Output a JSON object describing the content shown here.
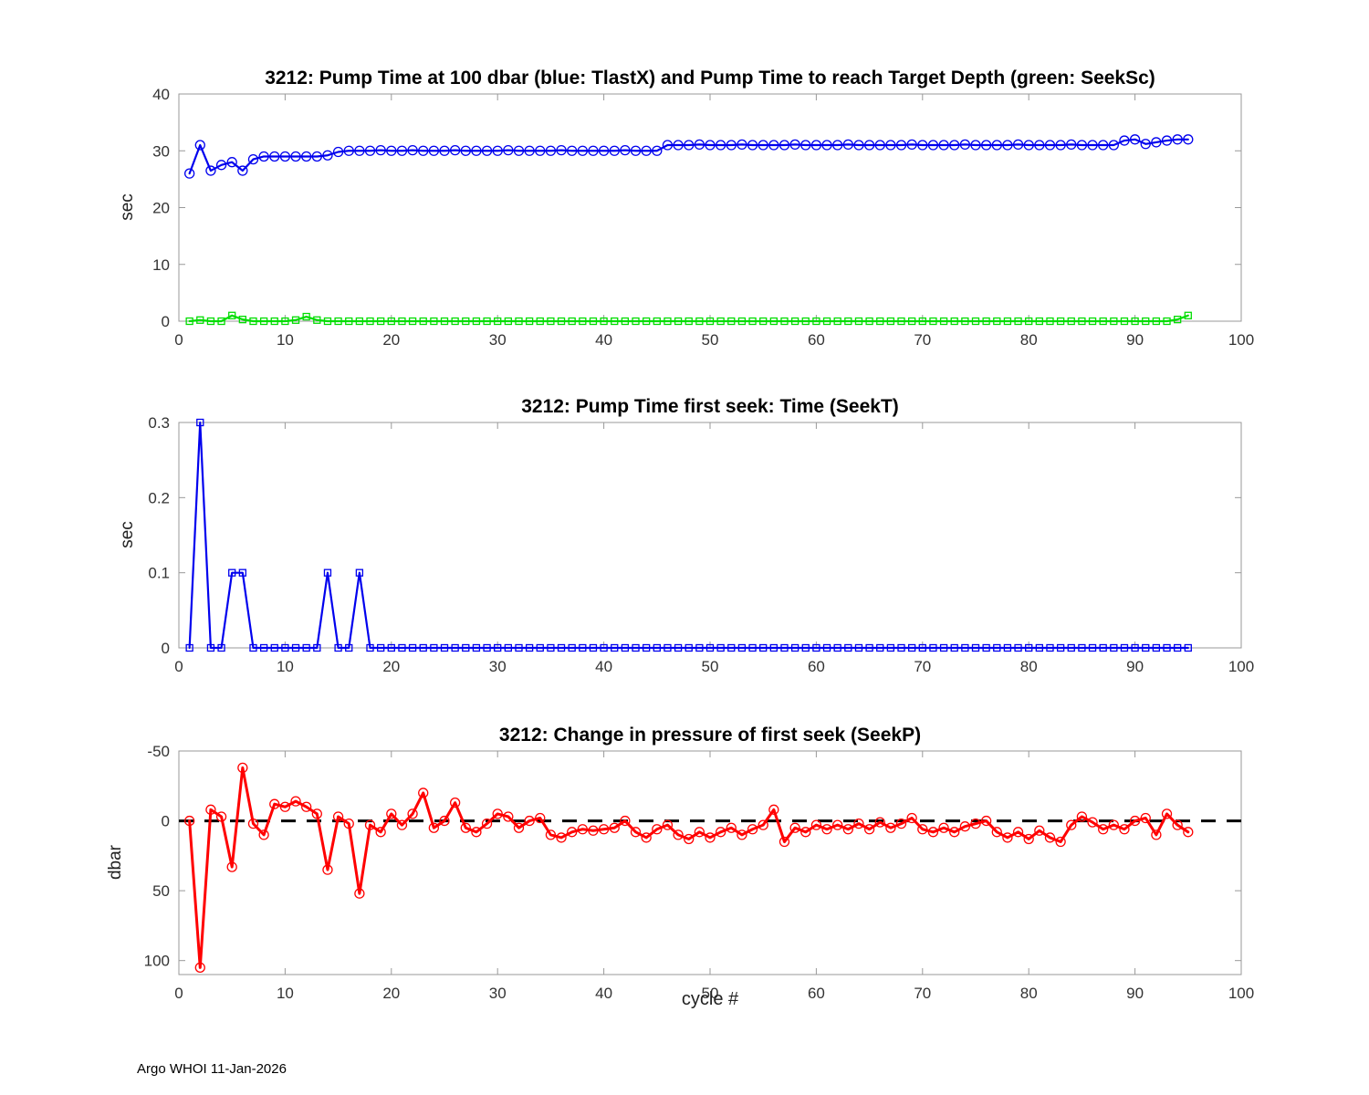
{
  "footer": "Argo WHOI 11-Jan-2026",
  "xlabel": "cycle #",
  "chart_data": [
    {
      "type": "line",
      "title": "3212:  Pump Time at 100 dbar (blue: TlastX) and Pump Time to reach Target Depth (green: SeekSc)",
      "ylabel": "sec",
      "ylim": [
        0,
        40
      ],
      "yticks": [
        0,
        10,
        20,
        30,
        40
      ],
      "xlim": [
        0,
        100
      ],
      "xticks": [
        0,
        10,
        20,
        30,
        40,
        50,
        60,
        70,
        80,
        90,
        100
      ],
      "grid": false,
      "legend": "inline in title",
      "series": [
        {
          "name": "TlastX",
          "color": "#0000ee",
          "marker": "circle",
          "x_start": 1,
          "values": [
            26,
            31,
            26.5,
            27.5,
            28,
            26.5,
            28.5,
            29,
            29,
            29,
            29,
            29,
            29,
            29.2,
            29.8,
            30,
            30,
            30,
            30.1,
            30,
            30,
            30.1,
            30,
            30,
            30,
            30.1,
            30,
            30,
            30,
            30,
            30.1,
            30,
            30,
            30,
            30,
            30.1,
            30,
            30,
            30,
            30,
            30,
            30.1,
            30,
            30,
            30,
            31,
            31,
            31,
            31.1,
            31,
            31,
            31,
            31.1,
            31,
            31,
            31,
            31,
            31.1,
            31,
            31,
            31,
            31,
            31.1,
            31,
            31,
            31,
            31,
            31,
            31.1,
            31,
            31,
            31,
            31,
            31.1,
            31,
            31,
            31,
            31,
            31.1,
            31,
            31,
            31,
            31,
            31.1,
            31,
            31,
            31,
            31,
            31.8,
            32,
            31.2,
            31.5,
            31.8,
            32,
            32
          ]
        },
        {
          "name": "SeekSc",
          "color": "#00dd00",
          "marker": "square",
          "x_start": 1,
          "values": [
            0,
            0.2,
            0,
            0,
            1,
            0.3,
            0,
            0,
            0,
            0,
            0.2,
            0.8,
            0.2,
            0,
            0,
            0,
            0,
            0,
            0,
            0,
            0,
            0,
            0,
            0,
            0,
            0,
            0,
            0,
            0,
            0,
            0,
            0,
            0,
            0,
            0,
            0,
            0,
            0,
            0,
            0,
            0,
            0,
            0,
            0,
            0,
            0,
            0,
            0,
            0,
            0,
            0,
            0,
            0,
            0,
            0,
            0,
            0,
            0,
            0,
            0,
            0,
            0,
            0,
            0,
            0,
            0,
            0,
            0,
            0,
            0,
            0,
            0,
            0,
            0,
            0,
            0,
            0,
            0,
            0,
            0,
            0,
            0,
            0,
            0,
            0,
            0,
            0,
            0,
            0,
            0,
            0,
            0,
            0,
            0.3,
            1
          ]
        }
      ]
    },
    {
      "type": "line",
      "title": "3212: Pump Time first seek: Time (SeekT)",
      "ylabel": "sec",
      "ylim": [
        0,
        0.3
      ],
      "yticks": [
        0,
        0.1,
        0.2,
        0.3
      ],
      "xlim": [
        0,
        100
      ],
      "xticks": [
        0,
        10,
        20,
        30,
        40,
        50,
        60,
        70,
        80,
        90,
        100
      ],
      "grid": false,
      "series": [
        {
          "name": "SeekT",
          "color": "#0000ee",
          "marker": "square",
          "x_start": 1,
          "values": [
            0,
            0.3,
            0,
            0,
            0.1,
            0.1,
            0,
            0,
            0,
            0,
            0,
            0,
            0,
            0.1,
            0,
            0,
            0.1,
            0,
            0,
            0,
            0,
            0,
            0,
            0,
            0,
            0,
            0,
            0,
            0,
            0,
            0,
            0,
            0,
            0,
            0,
            0,
            0,
            0,
            0,
            0,
            0,
            0,
            0,
            0,
            0,
            0,
            0,
            0,
            0,
            0,
            0,
            0,
            0,
            0,
            0,
            0,
            0,
            0,
            0,
            0,
            0,
            0,
            0,
            0,
            0,
            0,
            0,
            0,
            0,
            0,
            0,
            0,
            0,
            0,
            0,
            0,
            0,
            0,
            0,
            0,
            0,
            0,
            0,
            0,
            0,
            0,
            0,
            0,
            0,
            0,
            0,
            0,
            0,
            0,
            0
          ]
        }
      ]
    },
    {
      "type": "line",
      "title": "3212: Change in pressure of first seek (SeekP)",
      "ylabel": "dbar",
      "ylim": [
        -50,
        110
      ],
      "y_reversed": true,
      "yticks": [
        -50,
        0,
        50,
        100
      ],
      "xlim": [
        0,
        100
      ],
      "xticks": [
        0,
        10,
        20,
        30,
        40,
        50,
        60,
        70,
        80,
        90,
        100
      ],
      "grid": false,
      "zero_line": {
        "color": "#000000",
        "style": "dashed"
      },
      "series": [
        {
          "name": "SeekP",
          "color": "#ff0000",
          "marker": "circle",
          "width": 3,
          "x_start": 1,
          "values": [
            0,
            105,
            -8,
            -3,
            33,
            -38,
            2,
            10,
            -12,
            -10,
            -14,
            -10,
            -5,
            35,
            -3,
            2,
            52,
            3,
            8,
            -5,
            3,
            -5,
            -20,
            5,
            0,
            -13,
            5,
            8,
            2,
            -5,
            -3,
            5,
            0,
            -2,
            10,
            12,
            8,
            6,
            7,
            6,
            5,
            0,
            8,
            12,
            6,
            3,
            10,
            13,
            8,
            12,
            8,
            5,
            10,
            6,
            3,
            -8,
            15,
            5,
            8,
            3,
            6,
            3,
            6,
            2,
            6,
            1,
            5,
            2,
            -2,
            6,
            8,
            5,
            8,
            4,
            2,
            0,
            8,
            12,
            8,
            13,
            7,
            12,
            15,
            3,
            -3,
            1,
            6,
            3,
            6,
            0,
            -2,
            10,
            -5,
            3,
            8
          ]
        }
      ]
    }
  ]
}
